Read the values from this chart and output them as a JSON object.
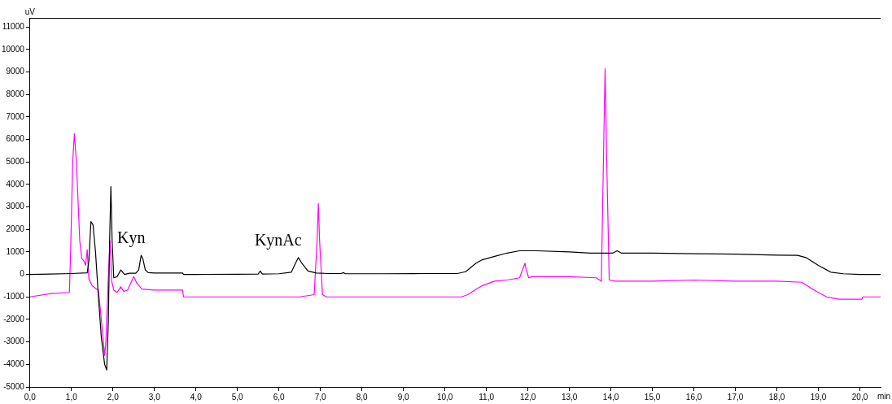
{
  "chart_data": {
    "type": "line",
    "xlabel": "min",
    "ylabel": "uV",
    "marker": "none",
    "grid": false,
    "legend": false,
    "xlim": [
      0,
      20.5
    ],
    "ylim": [
      -5000,
      11400
    ],
    "xticks": [
      {
        "value": 0,
        "label": "0,0"
      },
      {
        "value": 1,
        "label": "1,0"
      },
      {
        "value": 2,
        "label": "2,0"
      },
      {
        "value": 3,
        "label": "3,0"
      },
      {
        "value": 4,
        "label": "4,0"
      },
      {
        "value": 5,
        "label": "5,0"
      },
      {
        "value": 6,
        "label": "6,0"
      },
      {
        "value": 7,
        "label": "7,0"
      },
      {
        "value": 8,
        "label": "8,0"
      },
      {
        "value": 9,
        "label": "9,0"
      },
      {
        "value": 10,
        "label": "10,0"
      },
      {
        "value": 11,
        "label": "11,0"
      },
      {
        "value": 12,
        "label": "12,0"
      },
      {
        "value": 13,
        "label": "13,0"
      },
      {
        "value": 14,
        "label": "14,0"
      },
      {
        "value": 15,
        "label": "15,0"
      },
      {
        "value": 16,
        "label": "16,0"
      },
      {
        "value": 17,
        "label": "17,0"
      },
      {
        "value": 18,
        "label": "18,0"
      },
      {
        "value": 19,
        "label": "19,0"
      },
      {
        "value": 20,
        "label": "20,0"
      }
    ],
    "yticks": [
      -5000,
      -4000,
      -3000,
      -2000,
      -1000,
      0,
      1000,
      2000,
      3000,
      4000,
      5000,
      6000,
      7000,
      8000,
      9000,
      10000,
      11000
    ],
    "series": [
      {
        "color": "#000000",
        "x": [
          0,
          0.5,
          1.0,
          1.38,
          1.42,
          1.47,
          1.52,
          1.58,
          1.65,
          1.72,
          1.8,
          1.85,
          1.89,
          1.92,
          1.95,
          1.98,
          2.02,
          2.1,
          2.19,
          2.28,
          2.4,
          2.55,
          2.62,
          2.68,
          2.72,
          2.78,
          2.85,
          3.0,
          3.68,
          3.7,
          4.0,
          5.0,
          5.5,
          5.55,
          5.6,
          6.0,
          6.3,
          6.4,
          6.47,
          6.55,
          6.7,
          6.9,
          7.2,
          7.5,
          7.55,
          7.6,
          8.5,
          9.5,
          10.3,
          10.5,
          10.75,
          10.9,
          11.2,
          11.5,
          11.8,
          12.2,
          13.0,
          13.5,
          14.05,
          14.15,
          14.25,
          15.0,
          16.0,
          17.0,
          18.0,
          18.5,
          18.7,
          19.0,
          19.3,
          19.6,
          20.0,
          20.5
        ],
        "values": [
          0,
          20,
          40,
          70,
          600,
          2350,
          2200,
          1000,
          -1000,
          -2800,
          -4000,
          -4250,
          -2000,
          1500,
          3900,
          1500,
          -150,
          -100,
          200,
          0,
          50,
          50,
          200,
          850,
          700,
          200,
          80,
          60,
          60,
          0,
          0,
          10,
          20,
          150,
          20,
          30,
          100,
          500,
          750,
          500,
          150,
          60,
          40,
          40,
          80,
          30,
          30,
          40,
          40,
          120,
          500,
          650,
          800,
          950,
          1050,
          1050,
          1000,
          950,
          950,
          1050,
          950,
          950,
          920,
          900,
          860,
          850,
          750,
          400,
          100,
          30,
          0,
          0
        ]
      },
      {
        "color": "#ff00ff",
        "x": [
          0,
          0.5,
          0.95,
          0.98,
          1.03,
          1.07,
          1.12,
          1.2,
          1.25,
          1.3,
          1.34,
          1.38,
          1.42,
          1.5,
          1.6,
          1.65,
          1.72,
          1.8,
          1.83,
          1.88,
          1.93,
          1.97,
          2.02,
          2.1,
          2.19,
          2.26,
          2.35,
          2.45,
          2.5,
          2.58,
          2.7,
          3.0,
          3.68,
          3.7,
          5.0,
          6.5,
          6.85,
          6.92,
          6.95,
          6.98,
          7.05,
          7.15,
          8.0,
          9.0,
          10.4,
          10.55,
          10.8,
          10.9,
          11.2,
          11.5,
          11.8,
          11.93,
          11.96,
          12.02,
          12.1,
          13.0,
          13.65,
          13.77,
          13.82,
          13.86,
          13.9,
          13.96,
          14.1,
          15.0,
          16.0,
          17.0,
          18.0,
          18.6,
          18.9,
          19.2,
          19.5,
          20.05,
          20.07,
          20.5
        ],
        "values": [
          -1000,
          -850,
          -800,
          1000,
          5000,
          6250,
          5000,
          1500,
          700,
          600,
          400,
          1100,
          -200,
          -500,
          -650,
          -700,
          -2000,
          -3600,
          -3000,
          -500,
          1500,
          -300,
          -700,
          -800,
          -550,
          -750,
          -700,
          -300,
          -100,
          -400,
          -650,
          -700,
          -700,
          -1000,
          -1000,
          -1000,
          -900,
          1500,
          3150,
          1500,
          -900,
          -1000,
          -1000,
          -1000,
          -1000,
          -900,
          -600,
          -500,
          -300,
          -250,
          -150,
          500,
          200,
          -150,
          -100,
          -100,
          -150,
          -300,
          5000,
          9150,
          5000,
          -250,
          -300,
          -300,
          -250,
          -300,
          -300,
          -350,
          -700,
          -1000,
          -1100,
          -1100,
          -1000,
          -1000
        ]
      }
    ],
    "annotations": [
      {
        "text": "Kyn",
        "x": 2.7,
        "y": 850
      },
      {
        "text": "KynAc",
        "x": 6.47,
        "y": 750
      }
    ]
  }
}
